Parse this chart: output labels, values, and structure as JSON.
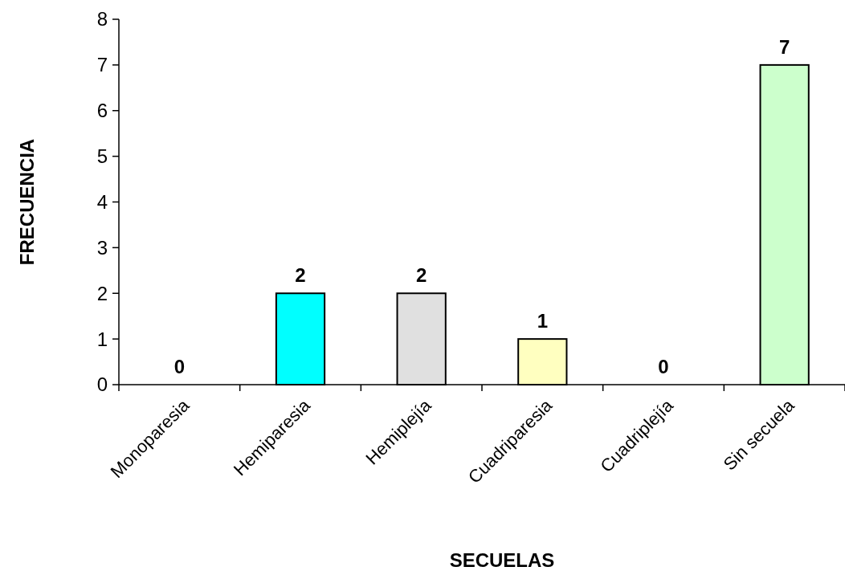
{
  "chart_data": {
    "type": "bar",
    "xlabel": "SECUELAS",
    "ylabel": "FRECUENCIA",
    "categories": [
      "Monoparesia",
      "Hemiparesia",
      "Hemiplejía",
      "Cuadriparesia",
      "Cuadriplejía",
      "Sin secuela"
    ],
    "values": [
      0,
      2,
      2,
      1,
      0,
      7
    ],
    "colors": [
      null,
      "#00ffff",
      "#e0e0e0",
      "#ffffc0",
      null,
      "#ccffcc"
    ],
    "ylim": [
      0,
      8
    ],
    "yticks": [
      0,
      1,
      2,
      3,
      4,
      5,
      6,
      7,
      8
    ],
    "data_labels": true
  }
}
